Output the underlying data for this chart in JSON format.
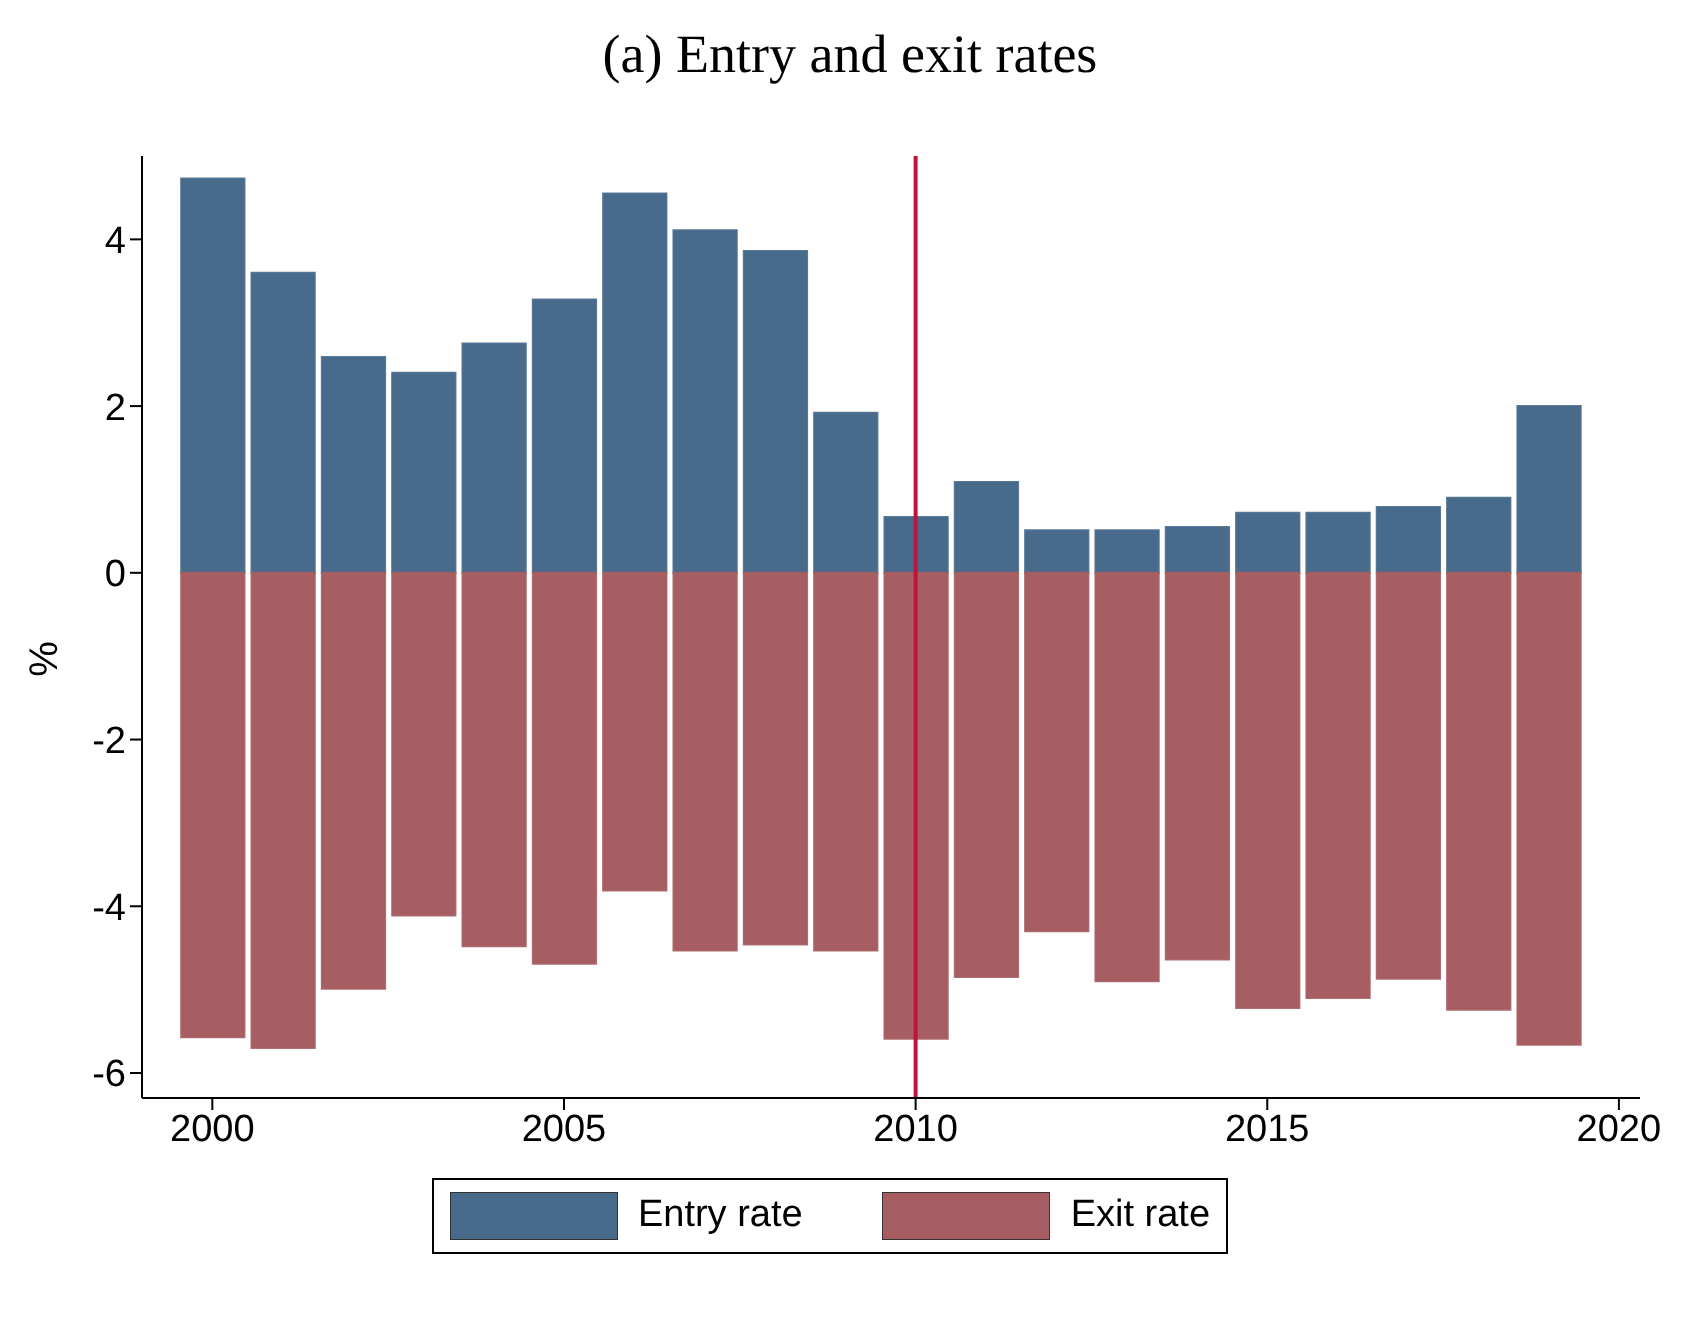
{
  "chart_data": {
    "type": "bar",
    "title": "(a) Entry and exit rates",
    "ylabel": "%",
    "x": [
      2000,
      2001,
      2002,
      2003,
      2004,
      2005,
      2006,
      2007,
      2008,
      2009,
      2010,
      2011,
      2012,
      2013,
      2014,
      2015,
      2016,
      2017,
      2018,
      2019
    ],
    "series": [
      {
        "name": "Entry rate",
        "color": "#486b8c",
        "values": [
          4.73,
          3.6,
          2.59,
          2.4,
          2.75,
          3.28,
          4.55,
          4.11,
          3.86,
          1.92,
          0.67,
          1.09,
          0.51,
          0.51,
          0.55,
          0.72,
          0.72,
          0.79,
          0.9,
          2.0
        ]
      },
      {
        "name": "Exit rate",
        "color": "#a65e63",
        "values": [
          -5.57,
          -5.7,
          -4.99,
          -4.11,
          -4.48,
          -4.69,
          -3.81,
          -4.53,
          -4.46,
          -4.53,
          -5.59,
          -4.85,
          -4.3,
          -4.9,
          -4.64,
          -5.22,
          -5.1,
          -4.87,
          -5.24,
          -5.66
        ]
      }
    ],
    "stacked": true,
    "xlim": [
      1999,
      2020.3
    ],
    "xticks": [
      2000,
      2005,
      2010,
      2015,
      2020
    ],
    "ylim": [
      -6.3,
      5
    ],
    "yticks": [
      -6,
      -4,
      -2,
      0,
      2,
      4
    ],
    "ref_lines": [
      {
        "axis": "x",
        "value": 2010,
        "color": "#c0143c"
      }
    ],
    "grid": false,
    "legend": "bottom"
  }
}
